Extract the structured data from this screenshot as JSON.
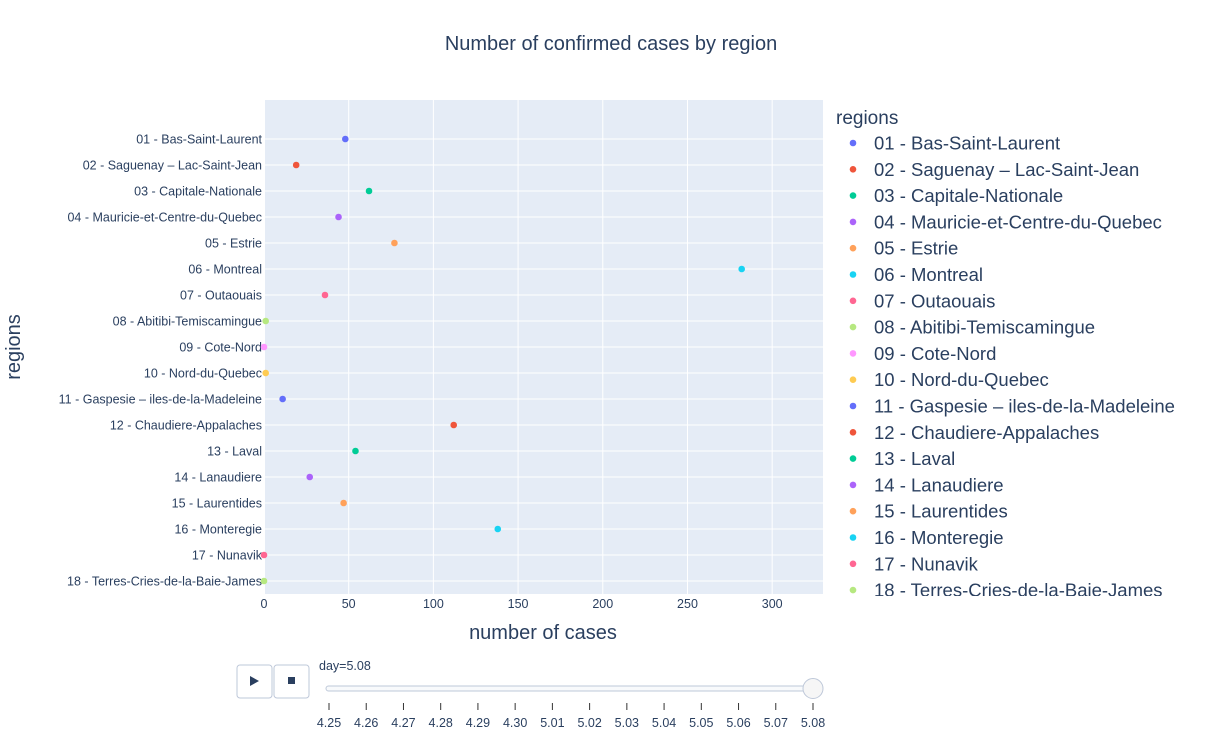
{
  "chart_data": {
    "type": "scatter",
    "title": "Number of confirmed cases by region",
    "xlabel": "number of cases",
    "ylabel": "regions",
    "xlim": [
      0,
      330
    ],
    "xticks": [
      0,
      50,
      100,
      150,
      200,
      250,
      300
    ],
    "grid": true,
    "legend_title": "regions",
    "legend_position": "right",
    "series": [
      {
        "name": "01 - Bas-Saint-Laurent",
        "x": 48,
        "color": "#636efa"
      },
      {
        "name": "02 - Saguenay – Lac-Saint-Jean",
        "x": 19,
        "color": "#EF553B"
      },
      {
        "name": "03 - Capitale-Nationale",
        "x": 62,
        "color": "#00cc96"
      },
      {
        "name": "04 - Mauricie-et-Centre-du-Quebec",
        "x": 44,
        "color": "#ab63fa"
      },
      {
        "name": "05 - Estrie",
        "x": 77,
        "color": "#FFA15A"
      },
      {
        "name": "06 - Montreal",
        "x": 282,
        "color": "#19d3f3"
      },
      {
        "name": "07 - Outaouais",
        "x": 36,
        "color": "#FF6692"
      },
      {
        "name": "08 - Abitibi-Temiscamingue",
        "x": 1,
        "color": "#B6E880"
      },
      {
        "name": "09 - Cote-Nord",
        "x": 0,
        "color": "#FF97FF"
      },
      {
        "name": "10 - Nord-du-Quebec",
        "x": 1,
        "color": "#FECB52"
      },
      {
        "name": "11 - Gaspesie – iles-de-la-Madeleine",
        "x": 11,
        "color": "#636efa"
      },
      {
        "name": "12 - Chaudiere-Appalaches",
        "x": 112,
        "color": "#EF553B"
      },
      {
        "name": "13 - Laval",
        "x": 54,
        "color": "#00cc96"
      },
      {
        "name": "14 - Lanaudiere",
        "x": 27,
        "color": "#ab63fa"
      },
      {
        "name": "15 - Laurentides",
        "x": 47,
        "color": "#FFA15A"
      },
      {
        "name": "16 - Monteregie",
        "x": 138,
        "color": "#19d3f3"
      },
      {
        "name": "17 - Nunavik",
        "x": 0,
        "color": "#FF6692"
      },
      {
        "name": "18 - Terres-Cries-de-la-Baie-James",
        "x": 0,
        "color": "#B6E880"
      }
    ]
  },
  "slider": {
    "current_label": "day=5.08",
    "steps": [
      "4.25",
      "4.26",
      "4.27",
      "4.28",
      "4.29",
      "4.30",
      "5.01",
      "5.02",
      "5.03",
      "5.04",
      "5.05",
      "5.06",
      "5.07",
      "5.08"
    ],
    "active_index": 13
  },
  "controls": {
    "play_icon": "play-icon",
    "stop_icon": "stop-icon"
  }
}
